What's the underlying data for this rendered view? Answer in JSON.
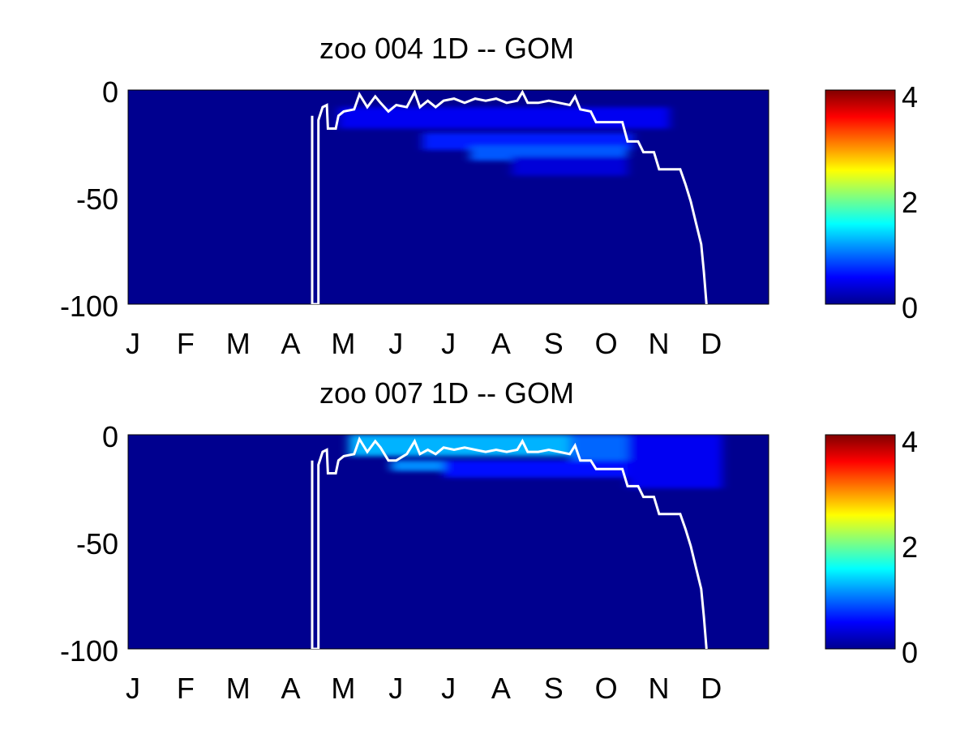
{
  "chart_data": [
    {
      "type": "heatmap",
      "title": "zoo  004 1D   -- GOM",
      "xlabel": "",
      "ylabel": "",
      "x_tick_labels": [
        "J",
        "F",
        "M",
        "A",
        "M",
        "J",
        "J",
        "A",
        "S",
        "O",
        "N",
        "D"
      ],
      "y_tick_labels": [
        "0",
        "-50",
        "-100"
      ],
      "ylim": [
        -100,
        0
      ],
      "colorbar": {
        "ticks": [
          "0",
          "2",
          "4"
        ],
        "range": [
          0,
          4
        ]
      },
      "colormap": "jet",
      "grid": false,
      "overlay_line_color": "#ffffff",
      "hotspots": [
        {
          "month_start": 4.0,
          "month_end": 10.3,
          "depth_top": -8,
          "depth_bottom": -18,
          "value": 0.45
        },
        {
          "month_start": 5.6,
          "month_end": 9.6,
          "depth_top": -20,
          "depth_bottom": -28,
          "value": 0.6
        },
        {
          "month_start": 6.5,
          "month_end": 9.5,
          "depth_top": -26,
          "depth_bottom": -33,
          "value": 0.85
        },
        {
          "month_start": 7.3,
          "month_end": 9.5,
          "depth_top": -31,
          "depth_bottom": -40,
          "value": 0.35
        }
      ],
      "boundary_line": [
        [
          3.5,
          -12
        ],
        [
          3.5,
          -100
        ],
        [
          3.62,
          -100
        ],
        [
          3.62,
          -14
        ],
        [
          3.7,
          -8
        ],
        [
          3.78,
          -7
        ],
        [
          3.8,
          -18
        ],
        [
          3.95,
          -18
        ],
        [
          4.0,
          -12
        ],
        [
          4.1,
          -10
        ],
        [
          4.3,
          -9
        ],
        [
          4.4,
          -2
        ],
        [
          4.55,
          -8
        ],
        [
          4.7,
          -3
        ],
        [
          4.8,
          -6
        ],
        [
          4.95,
          -10
        ],
        [
          5.1,
          -7
        ],
        [
          5.3,
          -8
        ],
        [
          5.45,
          -1
        ],
        [
          5.55,
          -8
        ],
        [
          5.7,
          -5
        ],
        [
          5.85,
          -8
        ],
        [
          6.0,
          -5
        ],
        [
          6.2,
          -4
        ],
        [
          6.4,
          -6
        ],
        [
          6.6,
          -4
        ],
        [
          6.8,
          -5
        ],
        [
          7.0,
          -4
        ],
        [
          7.2,
          -6
        ],
        [
          7.4,
          -5
        ],
        [
          7.5,
          -1
        ],
        [
          7.6,
          -6
        ],
        [
          7.8,
          -6
        ],
        [
          8.0,
          -5
        ],
        [
          8.2,
          -6
        ],
        [
          8.4,
          -7
        ],
        [
          8.5,
          -3
        ],
        [
          8.6,
          -9
        ],
        [
          8.8,
          -10
        ],
        [
          8.9,
          -15
        ],
        [
          9.4,
          -15
        ],
        [
          9.5,
          -24
        ],
        [
          9.7,
          -24
        ],
        [
          9.8,
          -29
        ],
        [
          10.0,
          -29
        ],
        [
          10.1,
          -37
        ],
        [
          10.5,
          -37
        ],
        [
          10.6,
          -44
        ],
        [
          10.7,
          -52
        ],
        [
          10.8,
          -62
        ],
        [
          10.9,
          -72
        ],
        [
          10.95,
          -85
        ],
        [
          11.0,
          -100
        ]
      ]
    },
    {
      "type": "heatmap",
      "title": "zoo  007 1D   -- GOM",
      "xlabel": "",
      "ylabel": "",
      "x_tick_labels": [
        "J",
        "F",
        "M",
        "A",
        "M",
        "J",
        "J",
        "A",
        "S",
        "O",
        "N",
        "D"
      ],
      "y_tick_labels": [
        "0",
        "-50",
        "-100"
      ],
      "ylim": [
        -100,
        0
      ],
      "colorbar": {
        "ticks": [
          "0",
          "2",
          "4"
        ],
        "range": [
          0,
          4
        ]
      },
      "colormap": "jet",
      "grid": false,
      "overlay_line_color": "#ffffff",
      "hotspots": [
        {
          "month_start": 4.2,
          "month_end": 8.4,
          "depth_top": 0,
          "depth_bottom": -10,
          "value": 1.2
        },
        {
          "month_start": 8.4,
          "month_end": 9.5,
          "depth_top": 0,
          "depth_bottom": -12,
          "value": 0.9
        },
        {
          "month_start": 9.5,
          "month_end": 11.3,
          "depth_top": 0,
          "depth_bottom": -25,
          "value": 0.45
        },
        {
          "month_start": 5.0,
          "month_end": 6.0,
          "depth_top": -12,
          "depth_bottom": -17,
          "value": 1.05
        },
        {
          "month_start": 6.0,
          "month_end": 9.5,
          "depth_top": -12,
          "depth_bottom": -20,
          "value": 0.55
        }
      ],
      "boundary_line": [
        [
          3.5,
          -12
        ],
        [
          3.5,
          -100
        ],
        [
          3.62,
          -100
        ],
        [
          3.62,
          -14
        ],
        [
          3.7,
          -8
        ],
        [
          3.78,
          -7
        ],
        [
          3.8,
          -18
        ],
        [
          3.95,
          -18
        ],
        [
          4.0,
          -12
        ],
        [
          4.1,
          -10
        ],
        [
          4.3,
          -9
        ],
        [
          4.4,
          -2
        ],
        [
          4.55,
          -8
        ],
        [
          4.7,
          -3
        ],
        [
          4.8,
          -6
        ],
        [
          4.95,
          -12
        ],
        [
          5.1,
          -12
        ],
        [
          5.3,
          -9
        ],
        [
          5.45,
          -3
        ],
        [
          5.55,
          -9
        ],
        [
          5.7,
          -7
        ],
        [
          5.85,
          -9
        ],
        [
          6.0,
          -6
        ],
        [
          6.2,
          -7
        ],
        [
          6.4,
          -6
        ],
        [
          6.6,
          -7
        ],
        [
          6.8,
          -8
        ],
        [
          7.0,
          -7
        ],
        [
          7.2,
          -8
        ],
        [
          7.4,
          -7
        ],
        [
          7.5,
          -3
        ],
        [
          7.6,
          -8
        ],
        [
          7.8,
          -8
        ],
        [
          8.0,
          -7
        ],
        [
          8.2,
          -8
        ],
        [
          8.4,
          -9
        ],
        [
          8.5,
          -5
        ],
        [
          8.6,
          -12
        ],
        [
          8.8,
          -12
        ],
        [
          8.9,
          -16
        ],
        [
          9.4,
          -16
        ],
        [
          9.5,
          -24
        ],
        [
          9.7,
          -24
        ],
        [
          9.8,
          -29
        ],
        [
          10.0,
          -29
        ],
        [
          10.1,
          -37
        ],
        [
          10.5,
          -37
        ],
        [
          10.6,
          -44
        ],
        [
          10.7,
          -52
        ],
        [
          10.8,
          -62
        ],
        [
          10.9,
          -72
        ],
        [
          10.95,
          -85
        ],
        [
          11.0,
          -100
        ]
      ]
    }
  ]
}
